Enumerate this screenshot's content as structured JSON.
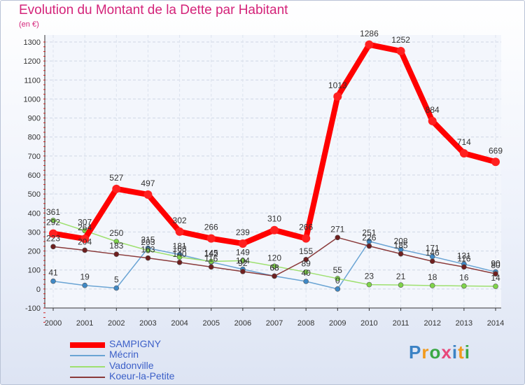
{
  "header": {
    "title": "Evolution du Montant de la Dette par Habitant",
    "unit_label": "(en €)"
  },
  "logo": {
    "text": "Proxiti",
    "colors": [
      "#3b82c4",
      "#f29a1d",
      "#3aa845",
      "#e8487a"
    ]
  },
  "chart_data": {
    "type": "line",
    "title": "Evolution du Montant de la Dette par Habitant",
    "ylabel": "(en €)",
    "xlabel": "",
    "x": [
      "2000",
      "2001",
      "2002",
      "2003",
      "2004",
      "2005",
      "2006",
      "2007",
      "2008",
      "2009",
      "2010",
      "2011",
      "2012",
      "2013",
      "2014"
    ],
    "ylim": [
      -100,
      1300
    ],
    "yticks": [
      -100,
      0,
      100,
      200,
      300,
      400,
      500,
      600,
      700,
      800,
      900,
      1000,
      1100,
      1200,
      1300
    ],
    "grid": true,
    "legend": "bottom-left",
    "series": [
      {
        "name": "SAMPIGNY",
        "color": "#ff0000",
        "marker_color": "#ff2020",
        "values": [
          292,
          264,
          527,
          497,
          302,
          266,
          239,
          310,
          266,
          1013,
          1286,
          1252,
          884,
          714,
          669
        ],
        "labels": [
          "292",
          "264",
          "527",
          "497",
          "302",
          "266",
          "239",
          "310",
          "266",
          "1013",
          "1286",
          "1252",
          "884",
          "714",
          "669"
        ]
      },
      {
        "name": "Mécrin",
        "color": "#6aa4d4",
        "marker_color": "#3f88c5",
        "values": [
          41,
          19,
          5,
          215,
          181,
          142,
          104,
          68,
          40,
          0,
          251,
          208,
          171,
          131,
          90
        ],
        "labels": [
          "41",
          "19",
          "5",
          "215",
          "181",
          "142",
          "104",
          "68",
          "40",
          "0",
          "251",
          "208",
          "171",
          "131",
          "90"
        ]
      },
      {
        "name": "Vadonville",
        "color": "#9ee06f",
        "marker_color": "#7fd44a",
        "values": [
          361,
          307,
          250,
          203,
          168,
          145,
          149,
          120,
          89,
          55,
          23,
          21,
          18,
          16,
          14
        ],
        "labels": [
          "361",
          "307",
          "250",
          "203",
          "168",
          "145",
          "149",
          "120",
          "89",
          "55",
          "23",
          "21",
          "18",
          "16",
          "14"
        ]
      },
      {
        "name": "Koeur-la-Petite",
        "color": "#8a3a3a",
        "marker_color": "#6e1f1f",
        "values": [
          223,
          204,
          183,
          163,
          140,
          116,
          92,
          68,
          155,
          271,
          226,
          185,
          146,
          116,
          80
        ],
        "labels": [
          "223",
          "204",
          "183",
          "163",
          "140",
          "116",
          "92",
          "68",
          "155",
          "271",
          "226",
          "185",
          "146",
          "116",
          "80"
        ]
      }
    ]
  }
}
